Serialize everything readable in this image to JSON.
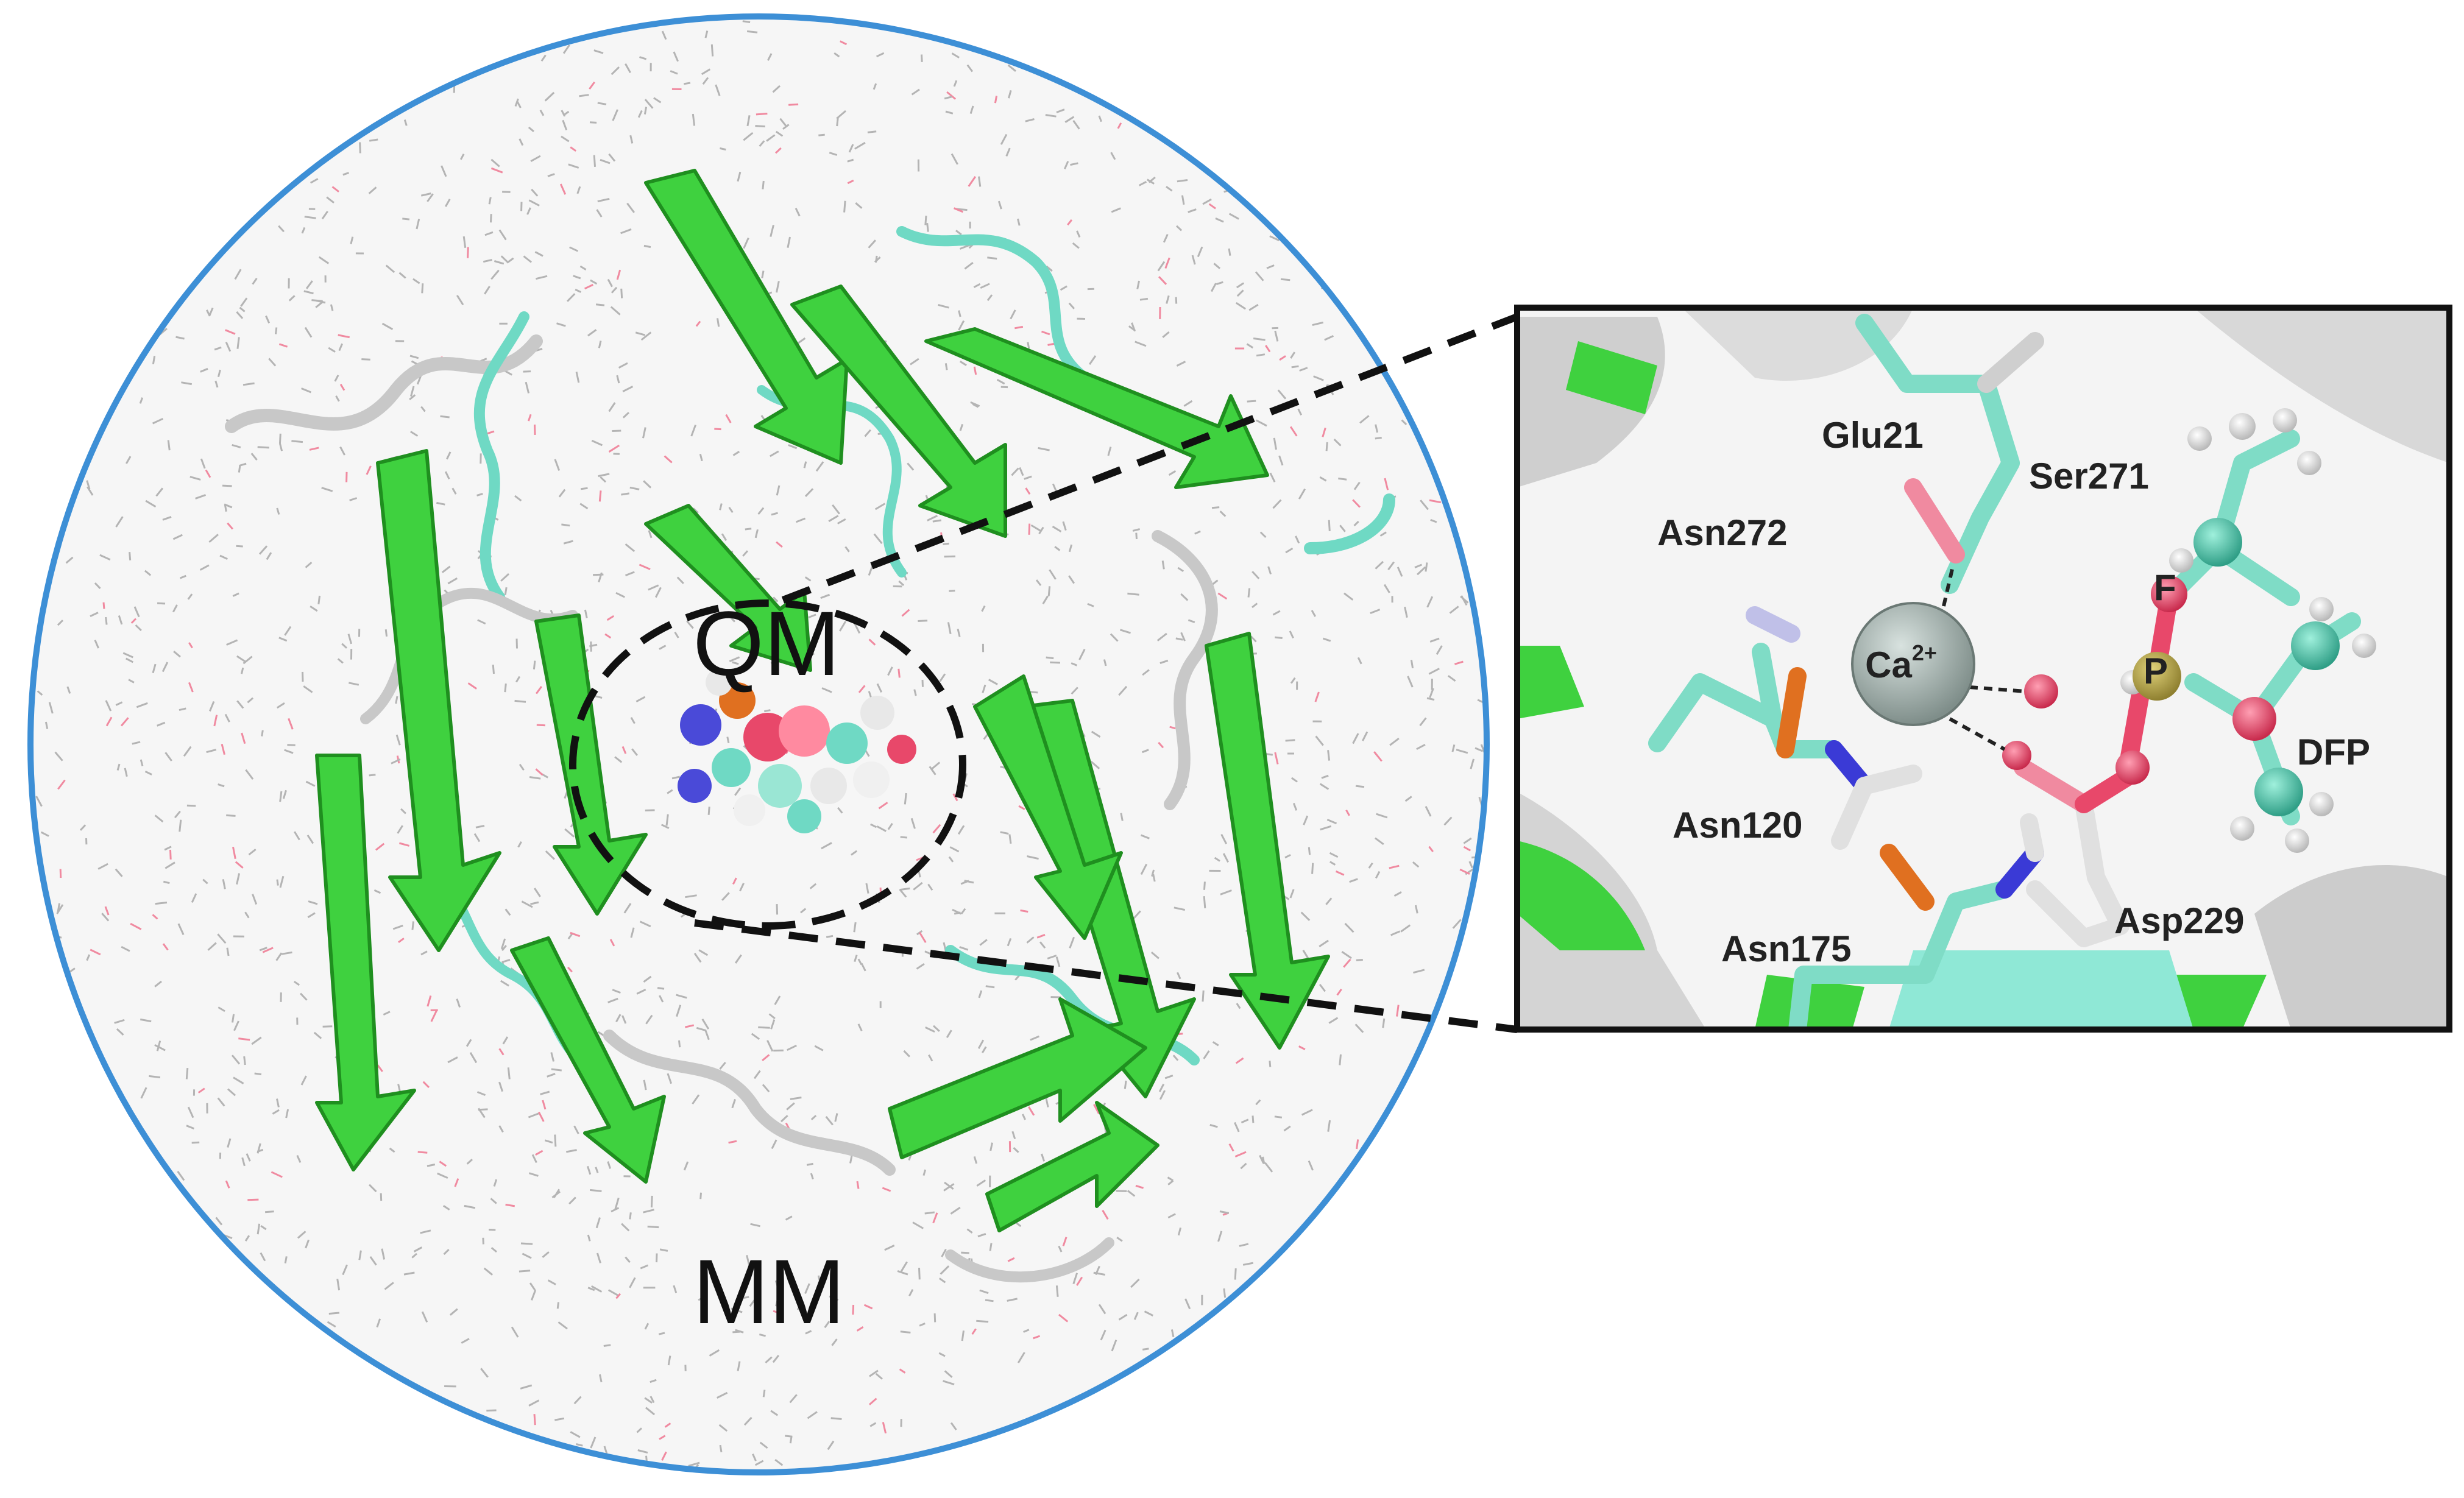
{
  "regions": {
    "qm_label": "QM",
    "mm_label": "MM"
  },
  "inset": {
    "residues": {
      "glu21": "Glu21",
      "ser271": "Ser271",
      "asn272": "Asn272",
      "asn120": "Asn120",
      "asn175": "Asn175",
      "asp229": "Asp229",
      "dfp": "DFP"
    },
    "ion": {
      "symbol": "Ca",
      "charge": "2+"
    },
    "atoms": {
      "fluorine": "F",
      "phosphorus": "P"
    }
  },
  "colors": {
    "sphere_outline": "#3d8fd6",
    "beta_sheet": "#3fd13f",
    "coil": "#6fd9c4",
    "oxygen": "#e8486a",
    "nitrogen": "#3a3ad6",
    "phosphorus": "#b8a640",
    "calcium": "#9aa8a4",
    "inset_frame": "#111111"
  },
  "icons": {
    "zoom_lines": "dashed-connector",
    "qm_boundary": "dashed-ellipse"
  }
}
